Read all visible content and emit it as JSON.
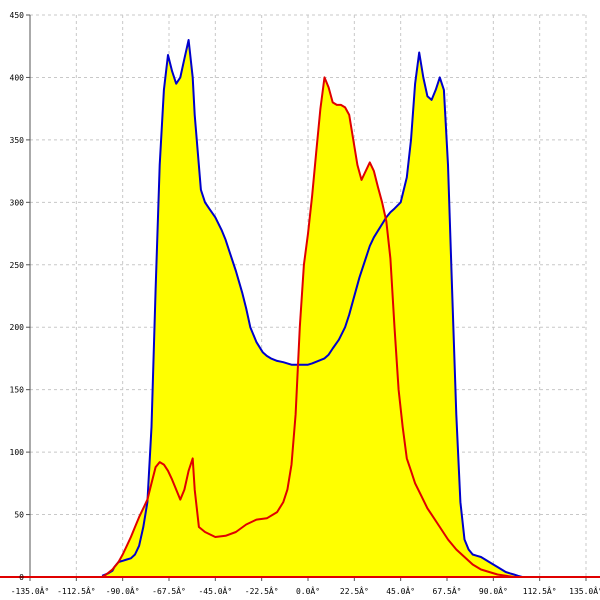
{
  "chart_data": {
    "type": "area",
    "title": "",
    "xlabel": "",
    "ylabel": "",
    "xlim": [
      -135,
      135
    ],
    "ylim": [
      0,
      450
    ],
    "grid": true,
    "x_ticks": [
      -135,
      -112.5,
      -90,
      -67.5,
      -45,
      -22.5,
      0,
      22.5,
      45,
      67.5,
      90,
      112.5,
      135
    ],
    "x_tick_labels": [
      "-135.0Â°",
      "-112.5Â°",
      "-90.0Â°",
      "-67.5Â°",
      "-45.0Â°",
      "-22.5Â°",
      "0.0Â°",
      "22.5Â°",
      "45.0Â°",
      "67.5Â°",
      "90.0Â°",
      "112.5Â°",
      "135.0Â°"
    ],
    "y_ticks": [
      0,
      50,
      100,
      150,
      200,
      250,
      300,
      350,
      400,
      450
    ],
    "y_tick_labels": [
      "0",
      "50",
      "100",
      "150",
      "200",
      "250",
      "300",
      "350",
      "400",
      "450"
    ],
    "fill_color": "#ffff00",
    "series": [
      {
        "color": "#0000cc",
        "x": [
          -100,
          -97,
          -95,
          -94,
          -92,
          -90,
          -88,
          -86,
          -84,
          -82,
          -80,
          -78,
          -76,
          -74,
          -72,
          -70,
          -68,
          -66,
          -64,
          -62,
          -60,
          -58,
          -56,
          -55,
          -52,
          -50,
          -48,
          -45,
          -42,
          -40,
          -38,
          -35,
          -32,
          -30,
          -28,
          -25,
          -22,
          -20,
          -18,
          -15,
          -12,
          -10,
          -8,
          -5,
          -2,
          0,
          2,
          5,
          8,
          10,
          12,
          15,
          18,
          20,
          22,
          25,
          28,
          30,
          32,
          35,
          38,
          40,
          42,
          45,
          48,
          50,
          52,
          54,
          56,
          58,
          60,
          62,
          64,
          66,
          68,
          70,
          72,
          74,
          76,
          78,
          80,
          82,
          84,
          86,
          88,
          90,
          92,
          94,
          96,
          98,
          100,
          102,
          104
        ],
        "y": [
          1,
          3,
          5,
          8,
          12,
          13,
          14,
          15,
          18,
          25,
          40,
          60,
          120,
          230,
          330,
          390,
          418,
          405,
          395,
          400,
          415,
          430,
          400,
          370,
          310,
          300,
          295,
          288,
          278,
          270,
          260,
          245,
          228,
          215,
          200,
          188,
          180,
          177,
          175,
          173,
          172,
          171,
          170,
          170,
          170,
          170,
          171,
          173,
          175,
          178,
          183,
          190,
          200,
          210,
          222,
          240,
          255,
          265,
          272,
          280,
          288,
          292,
          295,
          300,
          320,
          350,
          395,
          420,
          400,
          385,
          382,
          390,
          400,
          390,
          330,
          230,
          130,
          60,
          30,
          22,
          18,
          17,
          16,
          14,
          12,
          10,
          8,
          6,
          4,
          3,
          2,
          1,
          0
        ]
      },
      {
        "color": "#e00000",
        "x": [
          -100,
          -98,
          -95,
          -92,
          -90,
          -88,
          -86,
          -84,
          -82,
          -80,
          -78,
          -76,
          -74,
          -72,
          -70,
          -68,
          -66,
          -64,
          -62,
          -60,
          -58,
          -56,
          -55,
          -53,
          -50,
          -45,
          -40,
          -35,
          -30,
          -25,
          -20,
          -15,
          -12,
          -10,
          -8,
          -6,
          -4,
          -2,
          0,
          2,
          4,
          6,
          8,
          10,
          12,
          14,
          16,
          18,
          20,
          22,
          24,
          26,
          28,
          30,
          32,
          34,
          36,
          38,
          40,
          42,
          44,
          46,
          48,
          50,
          52,
          55,
          58,
          60,
          64,
          68,
          72,
          76,
          80,
          84,
          88,
          92,
          96,
          100,
          104
        ],
        "y": [
          0,
          2,
          6,
          12,
          18,
          25,
          32,
          40,
          48,
          55,
          62,
          75,
          88,
          92,
          90,
          85,
          78,
          70,
          62,
          70,
          85,
          95,
          70,
          40,
          36,
          32,
          33,
          36,
          42,
          46,
          47,
          52,
          60,
          70,
          90,
          130,
          200,
          250,
          275,
          305,
          340,
          375,
          400,
          392,
          380,
          378,
          378,
          376,
          370,
          350,
          330,
          318,
          325,
          332,
          325,
          312,
          300,
          285,
          255,
          200,
          150,
          120,
          95,
          85,
          75,
          65,
          55,
          50,
          40,
          30,
          22,
          16,
          10,
          6,
          4,
          2,
          1,
          0,
          0
        ]
      }
    ]
  }
}
